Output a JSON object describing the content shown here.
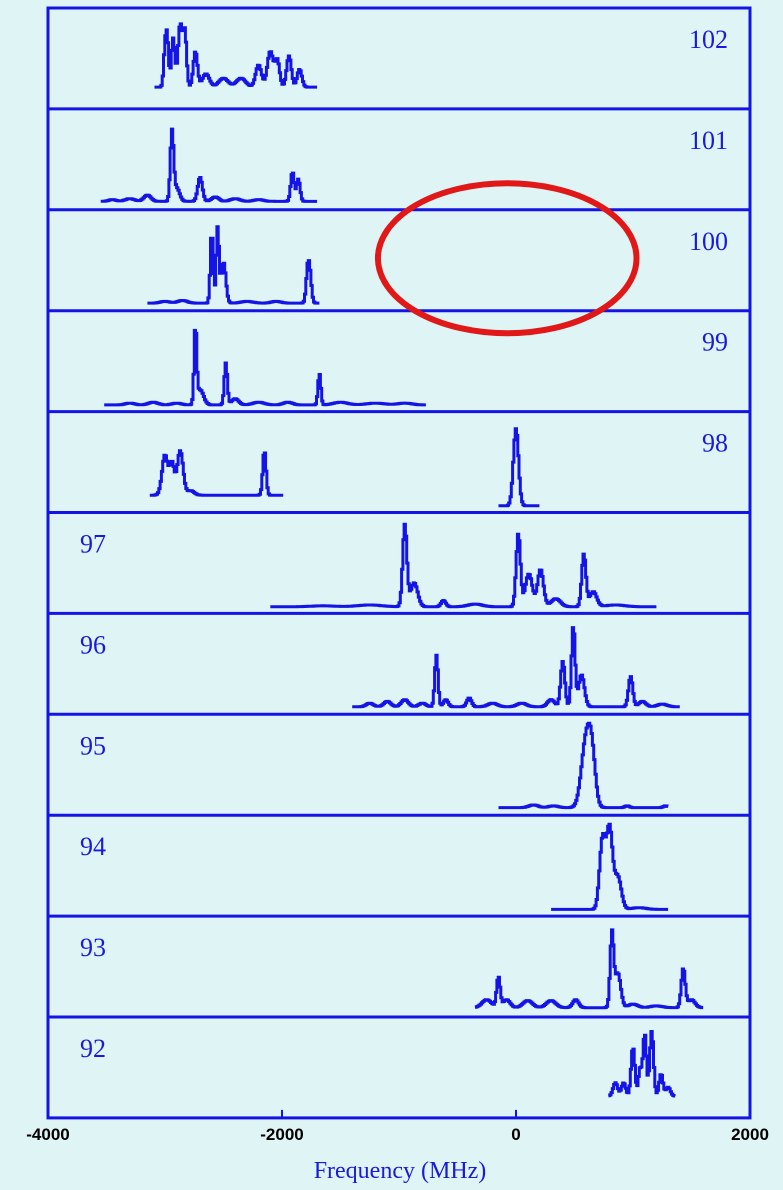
{
  "chart_data": {
    "type": "line",
    "title": "",
    "xlabel": "Frequency (MHz)",
    "ylabel": "",
    "xlim": [
      -4000,
      2000
    ],
    "x_ticks": [
      {
        "value": -4000,
        "label": "-4000"
      },
      {
        "value": -2000,
        "label": "-2000"
      },
      {
        "value": 0,
        "label": "0"
      },
      {
        "value": 2000,
        "label": "2000"
      }
    ],
    "colors": {
      "trace": "#1414e6",
      "frame": "#1414e6",
      "highlight": "#e01818",
      "background": "#dff4f4"
    },
    "highlight": {
      "shape": "ellipse",
      "row_label": "100",
      "x_range": [
        -1180,
        1030
      ]
    },
    "series": [
      {
        "name": "102",
        "label_side": "right",
        "x_range": [
          -3090,
          -1700
        ],
        "base": 0.2,
        "peaks": [
          [
            -3000,
            0.6,
            12
          ],
          [
            -2980,
            0.7,
            12
          ],
          [
            -2930,
            0.75,
            15
          ],
          [
            -2870,
            0.9,
            18
          ],
          [
            -2830,
            0.8,
            15
          ],
          [
            -2740,
            0.6,
            18
          ],
          [
            -2650,
            0.35,
            30
          ],
          [
            -2500,
            0.3,
            40
          ],
          [
            -2350,
            0.3,
            40
          ],
          [
            -2200,
            0.45,
            25
          ],
          [
            -2100,
            0.6,
            25
          ],
          [
            -2040,
            0.5,
            20
          ],
          [
            -1940,
            0.55,
            20
          ],
          [
            -1850,
            0.4,
            20
          ]
        ]
      },
      {
        "name": "101",
        "label_side": "right",
        "x_range": [
          -3550,
          -1700
        ],
        "base": 0.05,
        "peaks": [
          [
            -3450,
            0.07,
            30
          ],
          [
            -3300,
            0.08,
            40
          ],
          [
            -3150,
            0.12,
            30
          ],
          [
            -2940,
            0.82,
            14
          ],
          [
            -2900,
            0.2,
            25
          ],
          [
            -2700,
            0.32,
            20
          ],
          [
            -2570,
            0.1,
            30
          ],
          [
            -2400,
            0.08,
            40
          ],
          [
            -2200,
            0.07,
            40
          ],
          [
            -1910,
            0.38,
            15
          ],
          [
            -1860,
            0.3,
            15
          ]
        ]
      },
      {
        "name": "100",
        "label_side": "right",
        "x_range": [
          -3150,
          -1680
        ],
        "base": 0.04,
        "peaks": [
          [
            -3000,
            0.06,
            40
          ],
          [
            -2850,
            0.07,
            40
          ],
          [
            -2600,
            0.85,
            12
          ],
          [
            -2550,
            0.88,
            12
          ],
          [
            -2500,
            0.5,
            20
          ],
          [
            -2300,
            0.06,
            50
          ],
          [
            -2050,
            0.06,
            40
          ],
          [
            -1780,
            0.4,
            14
          ],
          [
            -1760,
            0.3,
            14
          ]
        ]
      },
      {
        "name": "99",
        "label_side": "right",
        "x_range": [
          -3520,
          -770
        ],
        "base": 0.03,
        "peaks": [
          [
            -3300,
            0.05,
            40
          ],
          [
            -3100,
            0.06,
            40
          ],
          [
            -2900,
            0.05,
            40
          ],
          [
            -2740,
            0.88,
            11
          ],
          [
            -2700,
            0.2,
            30
          ],
          [
            -2480,
            0.5,
            13
          ],
          [
            -2400,
            0.1,
            30
          ],
          [
            -2200,
            0.06,
            50
          ],
          [
            -1950,
            0.06,
            40
          ],
          [
            -1680,
            0.38,
            12
          ],
          [
            -1500,
            0.06,
            60
          ],
          [
            -1200,
            0.05,
            80
          ],
          [
            -950,
            0.05,
            60
          ]
        ]
      },
      {
        "name": "98",
        "label_side": "right",
        "x_range": [
          -3130,
          -1990
        ],
        "base": 0.15,
        "peaks": [
          [
            -3000,
            0.6,
            25
          ],
          [
            -2940,
            0.5,
            20
          ],
          [
            -2870,
            0.65,
            25
          ],
          [
            -2780,
            0.2,
            30
          ],
          [
            -2600,
            0.15,
            60
          ],
          [
            -2350,
            0.15,
            60
          ],
          [
            -2150,
            0.65,
            14
          ]
        ],
        "peaks_b": [
          [
            0,
            0.9,
            22
          ]
        ],
        "x_range_b": [
          -150,
          200
        ],
        "base_b": 0.03
      },
      {
        "name": "97",
        "label_side": "left",
        "x_range": [
          -2100,
          1200
        ],
        "base": 0.03,
        "peaks": [
          [
            -1650,
            0.04,
            100
          ],
          [
            -1250,
            0.05,
            100
          ],
          [
            -950,
            0.95,
            18
          ],
          [
            -870,
            0.3,
            30
          ],
          [
            -620,
            0.1,
            20
          ],
          [
            -350,
            0.06,
            60
          ],
          [
            20,
            0.85,
            18
          ],
          [
            110,
            0.4,
            30
          ],
          [
            210,
            0.45,
            25
          ],
          [
            340,
            0.12,
            40
          ],
          [
            580,
            0.62,
            18
          ],
          [
            660,
            0.2,
            30
          ],
          [
            850,
            0.05,
            80
          ]
        ]
      },
      {
        "name": "96",
        "label_side": "left",
        "x_range": [
          -1400,
          1400
        ],
        "base": 0.04,
        "peaks": [
          [
            -1250,
            0.08,
            30
          ],
          [
            -1100,
            0.1,
            30
          ],
          [
            -950,
            0.12,
            30
          ],
          [
            -800,
            0.08,
            30
          ],
          [
            -680,
            0.62,
            14
          ],
          [
            -600,
            0.12,
            20
          ],
          [
            -400,
            0.14,
            20
          ],
          [
            -200,
            0.08,
            40
          ],
          [
            50,
            0.08,
            40
          ],
          [
            300,
            0.12,
            30
          ],
          [
            400,
            0.55,
            18
          ],
          [
            490,
            0.95,
            15
          ],
          [
            560,
            0.4,
            25
          ],
          [
            980,
            0.38,
            18
          ],
          [
            1080,
            0.1,
            30
          ],
          [
            1250,
            0.07,
            40
          ]
        ]
      },
      {
        "name": "95",
        "label_side": "left",
        "x_range": [
          -150,
          1300
        ],
        "base": 0.04,
        "peaks": [
          [
            150,
            0.07,
            40
          ],
          [
            320,
            0.06,
            40
          ],
          [
            600,
            0.8,
            40
          ],
          [
            650,
            0.5,
            30
          ],
          [
            950,
            0.06,
            20
          ],
          [
            1280,
            0.06,
            20
          ]
        ]
      },
      {
        "name": "94",
        "label_side": "left",
        "x_range": [
          300,
          1300
        ],
        "base": 0.03,
        "peaks": [
          [
            740,
            0.82,
            25
          ],
          [
            800,
            0.92,
            25
          ],
          [
            870,
            0.4,
            30
          ],
          [
            1050,
            0.05,
            60
          ]
        ]
      },
      {
        "name": "93",
        "label_side": "left",
        "x_range": [
          -350,
          1600
        ],
        "base": 0.06,
        "peaks": [
          [
            -250,
            0.15,
            40
          ],
          [
            -150,
            0.4,
            15
          ],
          [
            -80,
            0.15,
            30
          ],
          [
            100,
            0.14,
            40
          ],
          [
            300,
            0.14,
            40
          ],
          [
            510,
            0.15,
            25
          ],
          [
            820,
            0.88,
            15
          ],
          [
            870,
            0.45,
            25
          ],
          [
            1000,
            0.1,
            40
          ],
          [
            1200,
            0.08,
            50
          ],
          [
            1430,
            0.5,
            17
          ],
          [
            1500,
            0.15,
            30
          ]
        ]
      },
      {
        "name": "92",
        "label_side": "left",
        "x_range": [
          790,
          1360
        ],
        "base": 0.2,
        "peaks": [
          [
            850,
            0.35,
            20
          ],
          [
            920,
            0.35,
            18
          ],
          [
            1000,
            0.75,
            16
          ],
          [
            1060,
            0.5,
            14
          ],
          [
            1100,
            0.9,
            15
          ],
          [
            1160,
            0.93,
            16
          ],
          [
            1240,
            0.45,
            16
          ],
          [
            1300,
            0.3,
            20
          ]
        ]
      }
    ]
  }
}
